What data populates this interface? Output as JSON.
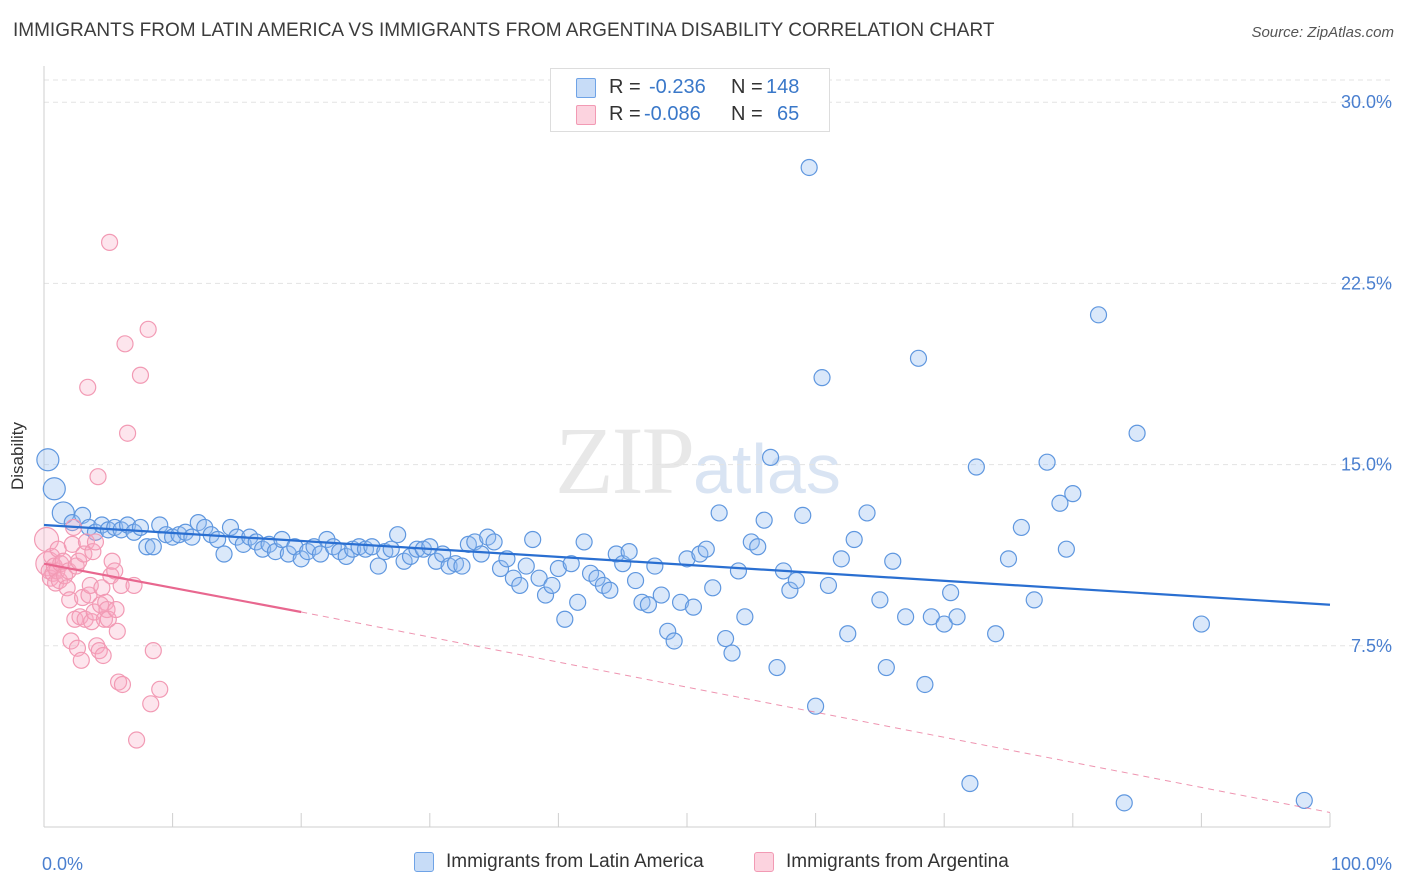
{
  "header": {
    "title": "IMMIGRANTS FROM LATIN AMERICA VS IMMIGRANTS FROM ARGENTINA DISABILITY CORRELATION CHART",
    "source": "Source: ZipAtlas.com"
  },
  "watermark": {
    "zip": "ZIP",
    "atlas": "atlas"
  },
  "stats": {
    "rows": [
      {
        "r_label": "R =",
        "r_value": "-0.236",
        "n_label": "N =",
        "n_value": "148",
        "color": "#aecbf2"
      },
      {
        "r_label": "R =",
        "r_value": "-0.086",
        "n_label": "N =",
        "n_value": "65",
        "color": "#f8bccd"
      }
    ]
  },
  "legend": {
    "items": [
      {
        "label": "Immigrants from Latin America",
        "color": "#aecbf2"
      },
      {
        "label": "Immigrants from Argentina",
        "color": "#f8bccd"
      }
    ]
  },
  "chart_data": {
    "type": "scatter",
    "title": "IMMIGRANTS FROM LATIN AMERICA VS IMMIGRANTS FROM ARGENTINA DISABILITY CORRELATION CHART",
    "xlabel": "",
    "ylabel": "Disability",
    "xlim": [
      0,
      100
    ],
    "ylim": [
      0,
      31.5
    ],
    "x_tick_labels": [
      "0.0%",
      "100.0%"
    ],
    "y_ticks": [
      7.5,
      15.0,
      22.5,
      30.0
    ],
    "y_tick_labels": [
      "7.5%",
      "15.0%",
      "22.5%",
      "30.0%"
    ],
    "grid": true,
    "legend_position": "bottom",
    "series": [
      {
        "name": "Immigrants from Latin America",
        "color": "#6fa3e6",
        "trend": {
          "x": [
            0,
            100
          ],
          "y": [
            12.5,
            9.2
          ],
          "color": "#2a6fd1"
        },
        "points": [
          [
            0.3,
            15.2
          ],
          [
            0.8,
            14.0
          ],
          [
            1.5,
            13.0
          ],
          [
            2.2,
            12.6
          ],
          [
            3.0,
            12.9
          ],
          [
            3.5,
            12.4
          ],
          [
            4.0,
            12.2
          ],
          [
            4.5,
            12.5
          ],
          [
            5.0,
            12.3
          ],
          [
            5.5,
            12.4
          ],
          [
            6.0,
            12.3
          ],
          [
            6.5,
            12.5
          ],
          [
            7.0,
            12.2
          ],
          [
            7.5,
            12.4
          ],
          [
            8.0,
            11.6
          ],
          [
            8.5,
            11.6
          ],
          [
            9.0,
            12.5
          ],
          [
            9.5,
            12.1
          ],
          [
            10.0,
            12.0
          ],
          [
            10.5,
            12.1
          ],
          [
            11.0,
            12.2
          ],
          [
            11.5,
            12.0
          ],
          [
            12.0,
            12.6
          ],
          [
            12.5,
            12.4
          ],
          [
            13.0,
            12.1
          ],
          [
            13.5,
            11.9
          ],
          [
            14.0,
            11.3
          ],
          [
            14.5,
            12.4
          ],
          [
            15.0,
            12.0
          ],
          [
            15.5,
            11.7
          ],
          [
            16.0,
            12.0
          ],
          [
            16.5,
            11.8
          ],
          [
            17.0,
            11.5
          ],
          [
            17.5,
            11.7
          ],
          [
            18.0,
            11.4
          ],
          [
            18.5,
            11.9
          ],
          [
            19.0,
            11.3
          ],
          [
            19.5,
            11.6
          ],
          [
            20.0,
            11.1
          ],
          [
            20.5,
            11.4
          ],
          [
            21.0,
            11.6
          ],
          [
            21.5,
            11.3
          ],
          [
            22.0,
            11.9
          ],
          [
            22.5,
            11.6
          ],
          [
            23.0,
            11.4
          ],
          [
            23.5,
            11.2
          ],
          [
            24.0,
            11.5
          ],
          [
            24.5,
            11.6
          ],
          [
            25.0,
            11.5
          ],
          [
            25.5,
            11.6
          ],
          [
            26.0,
            10.8
          ],
          [
            26.5,
            11.4
          ],
          [
            27.0,
            11.5
          ],
          [
            27.5,
            12.1
          ],
          [
            28.0,
            11.0
          ],
          [
            28.5,
            11.2
          ],
          [
            29.0,
            11.5
          ],
          [
            29.5,
            11.5
          ],
          [
            30.0,
            11.6
          ],
          [
            30.5,
            11.0
          ],
          [
            31.0,
            11.3
          ],
          [
            31.5,
            10.8
          ],
          [
            32.0,
            10.9
          ],
          [
            32.5,
            10.8
          ],
          [
            33.0,
            11.7
          ],
          [
            33.5,
            11.8
          ],
          [
            34.0,
            11.3
          ],
          [
            34.5,
            12.0
          ],
          [
            35.0,
            11.8
          ],
          [
            35.5,
            10.7
          ],
          [
            36.0,
            11.1
          ],
          [
            36.5,
            10.3
          ],
          [
            37.0,
            10.0
          ],
          [
            37.5,
            10.8
          ],
          [
            38.0,
            11.9
          ],
          [
            38.5,
            10.3
          ],
          [
            39.0,
            9.6
          ],
          [
            39.5,
            10.0
          ],
          [
            40.0,
            10.7
          ],
          [
            40.5,
            8.6
          ],
          [
            41.0,
            10.9
          ],
          [
            41.5,
            9.3
          ],
          [
            42.0,
            11.8
          ],
          [
            42.5,
            10.5
          ],
          [
            43.0,
            10.3
          ],
          [
            43.5,
            10.0
          ],
          [
            44.0,
            9.8
          ],
          [
            44.5,
            11.3
          ],
          [
            45.0,
            10.9
          ],
          [
            45.5,
            11.4
          ],
          [
            46.0,
            10.2
          ],
          [
            46.5,
            9.3
          ],
          [
            47.0,
            9.2
          ],
          [
            47.5,
            10.8
          ],
          [
            48.0,
            9.6
          ],
          [
            48.5,
            8.1
          ],
          [
            49.0,
            7.7
          ],
          [
            49.5,
            9.3
          ],
          [
            50.0,
            11.1
          ],
          [
            50.5,
            9.1
          ],
          [
            51.0,
            11.3
          ],
          [
            51.5,
            11.5
          ],
          [
            52.0,
            9.9
          ],
          [
            52.5,
            13.0
          ],
          [
            53.0,
            7.8
          ],
          [
            53.5,
            7.2
          ],
          [
            54.0,
            10.6
          ],
          [
            54.5,
            8.7
          ],
          [
            55.0,
            11.8
          ],
          [
            55.5,
            11.6
          ],
          [
            56.0,
            12.7
          ],
          [
            56.5,
            15.3
          ],
          [
            57.0,
            6.6
          ],
          [
            57.5,
            10.6
          ],
          [
            58.0,
            9.8
          ],
          [
            58.5,
            10.2
          ],
          [
            59.0,
            12.9
          ],
          [
            59.5,
            27.3
          ],
          [
            60.0,
            5.0
          ],
          [
            60.5,
            18.6
          ],
          [
            61.0,
            10.0
          ],
          [
            62.0,
            11.1
          ],
          [
            62.5,
            8.0
          ],
          [
            63.0,
            11.9
          ],
          [
            64.0,
            13.0
          ],
          [
            65.0,
            9.4
          ],
          [
            65.5,
            6.6
          ],
          [
            66.0,
            11.0
          ],
          [
            67.0,
            8.7
          ],
          [
            68.0,
            19.4
          ],
          [
            68.5,
            5.9
          ],
          [
            69.0,
            8.7
          ],
          [
            70.0,
            8.4
          ],
          [
            70.5,
            9.7
          ],
          [
            71.0,
            8.7
          ],
          [
            72.0,
            1.8
          ],
          [
            72.5,
            14.9
          ],
          [
            74.0,
            8.0
          ],
          [
            75.0,
            11.1
          ],
          [
            76.0,
            12.4
          ],
          [
            77.0,
            9.4
          ],
          [
            78.0,
            15.1
          ],
          [
            79.0,
            13.4
          ],
          [
            79.5,
            11.5
          ],
          [
            80.0,
            13.8
          ],
          [
            82.0,
            21.2
          ],
          [
            84.0,
            1.0
          ],
          [
            85.0,
            16.3
          ],
          [
            90.0,
            8.4
          ],
          [
            98.0,
            1.1
          ]
        ]
      },
      {
        "name": "Immigrants from Argentina",
        "color": "#f29ab4",
        "trend": {
          "x": [
            0,
            20
          ],
          "y": [
            10.9,
            8.9
          ],
          "color": "#e8678f",
          "extended_x": 100,
          "extended_y": 0.6
        },
        "points": [
          [
            0.2,
            11.9
          ],
          [
            0.3,
            10.9
          ],
          [
            0.4,
            10.6
          ],
          [
            0.5,
            10.3
          ],
          [
            0.6,
            11.2
          ],
          [
            0.7,
            10.5
          ],
          [
            0.8,
            10.8
          ],
          [
            0.9,
            10.1
          ],
          [
            1.0,
            10.6
          ],
          [
            1.1,
            11.5
          ],
          [
            1.2,
            10.2
          ],
          [
            1.3,
            10.9
          ],
          [
            1.5,
            11.0
          ],
          [
            1.6,
            10.4
          ],
          [
            1.8,
            9.9
          ],
          [
            1.9,
            10.6
          ],
          [
            2.0,
            9.4
          ],
          [
            2.1,
            7.7
          ],
          [
            2.2,
            11.7
          ],
          [
            2.3,
            12.4
          ],
          [
            2.4,
            8.6
          ],
          [
            2.5,
            10.8
          ],
          [
            2.6,
            7.4
          ],
          [
            2.7,
            11.0
          ],
          [
            2.8,
            8.7
          ],
          [
            2.9,
            6.9
          ],
          [
            3.0,
            9.5
          ],
          [
            3.1,
            11.3
          ],
          [
            3.2,
            8.6
          ],
          [
            3.3,
            11.8
          ],
          [
            3.4,
            18.2
          ],
          [
            3.5,
            9.6
          ],
          [
            3.6,
            10.0
          ],
          [
            3.7,
            8.5
          ],
          [
            3.8,
            11.4
          ],
          [
            3.9,
            8.9
          ],
          [
            4.0,
            11.8
          ],
          [
            4.1,
            7.5
          ],
          [
            4.2,
            14.5
          ],
          [
            4.3,
            7.3
          ],
          [
            4.4,
            9.2
          ],
          [
            4.5,
            9.9
          ],
          [
            4.6,
            7.1
          ],
          [
            4.7,
            8.6
          ],
          [
            4.8,
            9.3
          ],
          [
            4.9,
            9.0
          ],
          [
            5.0,
            8.6
          ],
          [
            5.1,
            24.2
          ],
          [
            5.2,
            10.4
          ],
          [
            5.3,
            11.0
          ],
          [
            5.5,
            10.6
          ],
          [
            5.6,
            9.0
          ],
          [
            5.7,
            8.1
          ],
          [
            5.8,
            6.0
          ],
          [
            6.0,
            10.0
          ],
          [
            6.1,
            5.9
          ],
          [
            6.3,
            20.0
          ],
          [
            6.5,
            16.3
          ],
          [
            7.0,
            10.0
          ],
          [
            7.2,
            3.6
          ],
          [
            7.5,
            18.7
          ],
          [
            8.1,
            20.6
          ],
          [
            8.3,
            5.1
          ],
          [
            8.5,
            7.3
          ],
          [
            9.0,
            5.7
          ]
        ]
      }
    ]
  }
}
